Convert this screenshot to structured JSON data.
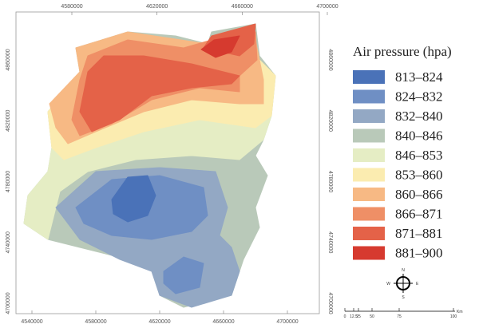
{
  "map": {
    "x_labels_top": [
      "4580000",
      "4620000",
      "4660000",
      "4700000"
    ],
    "x_labels_bottom": [
      "4540000",
      "4580000",
      "4620000",
      "4660000",
      "4700000"
    ],
    "y_labels_left": [
      "4860000",
      "4820000",
      "4780000",
      "4740000",
      "4700000"
    ],
    "y_labels_right": [
      "4860000",
      "4820000",
      "4780000",
      "4740000",
      "4700000"
    ]
  },
  "legend": {
    "title": "Air pressure (hpa)",
    "items": [
      {
        "label": "813–824",
        "color": "#4a72b8"
      },
      {
        "label": "824–832",
        "color": "#6f8fc4"
      },
      {
        "label": "832–840",
        "color": "#93a8c4"
      },
      {
        "label": "840–846",
        "color": "#b9c9b9"
      },
      {
        "label": "846–853",
        "color": "#e5edc4"
      },
      {
        "label": "853–860",
        "color": "#fbecb0"
      },
      {
        "label": "860–866",
        "color": "#f7b984"
      },
      {
        "label": "866–871",
        "color": "#ef8f66"
      },
      {
        "label": "871–881",
        "color": "#e46248"
      },
      {
        "label": "881–900",
        "color": "#d63a2f"
      }
    ]
  },
  "compass": {
    "n": "N",
    "e": "E",
    "s": "S",
    "w": "W"
  },
  "scale_bar": {
    "labels": [
      "0",
      "12.5",
      "25",
      "50",
      "75",
      "100"
    ],
    "unit": "Km"
  }
}
